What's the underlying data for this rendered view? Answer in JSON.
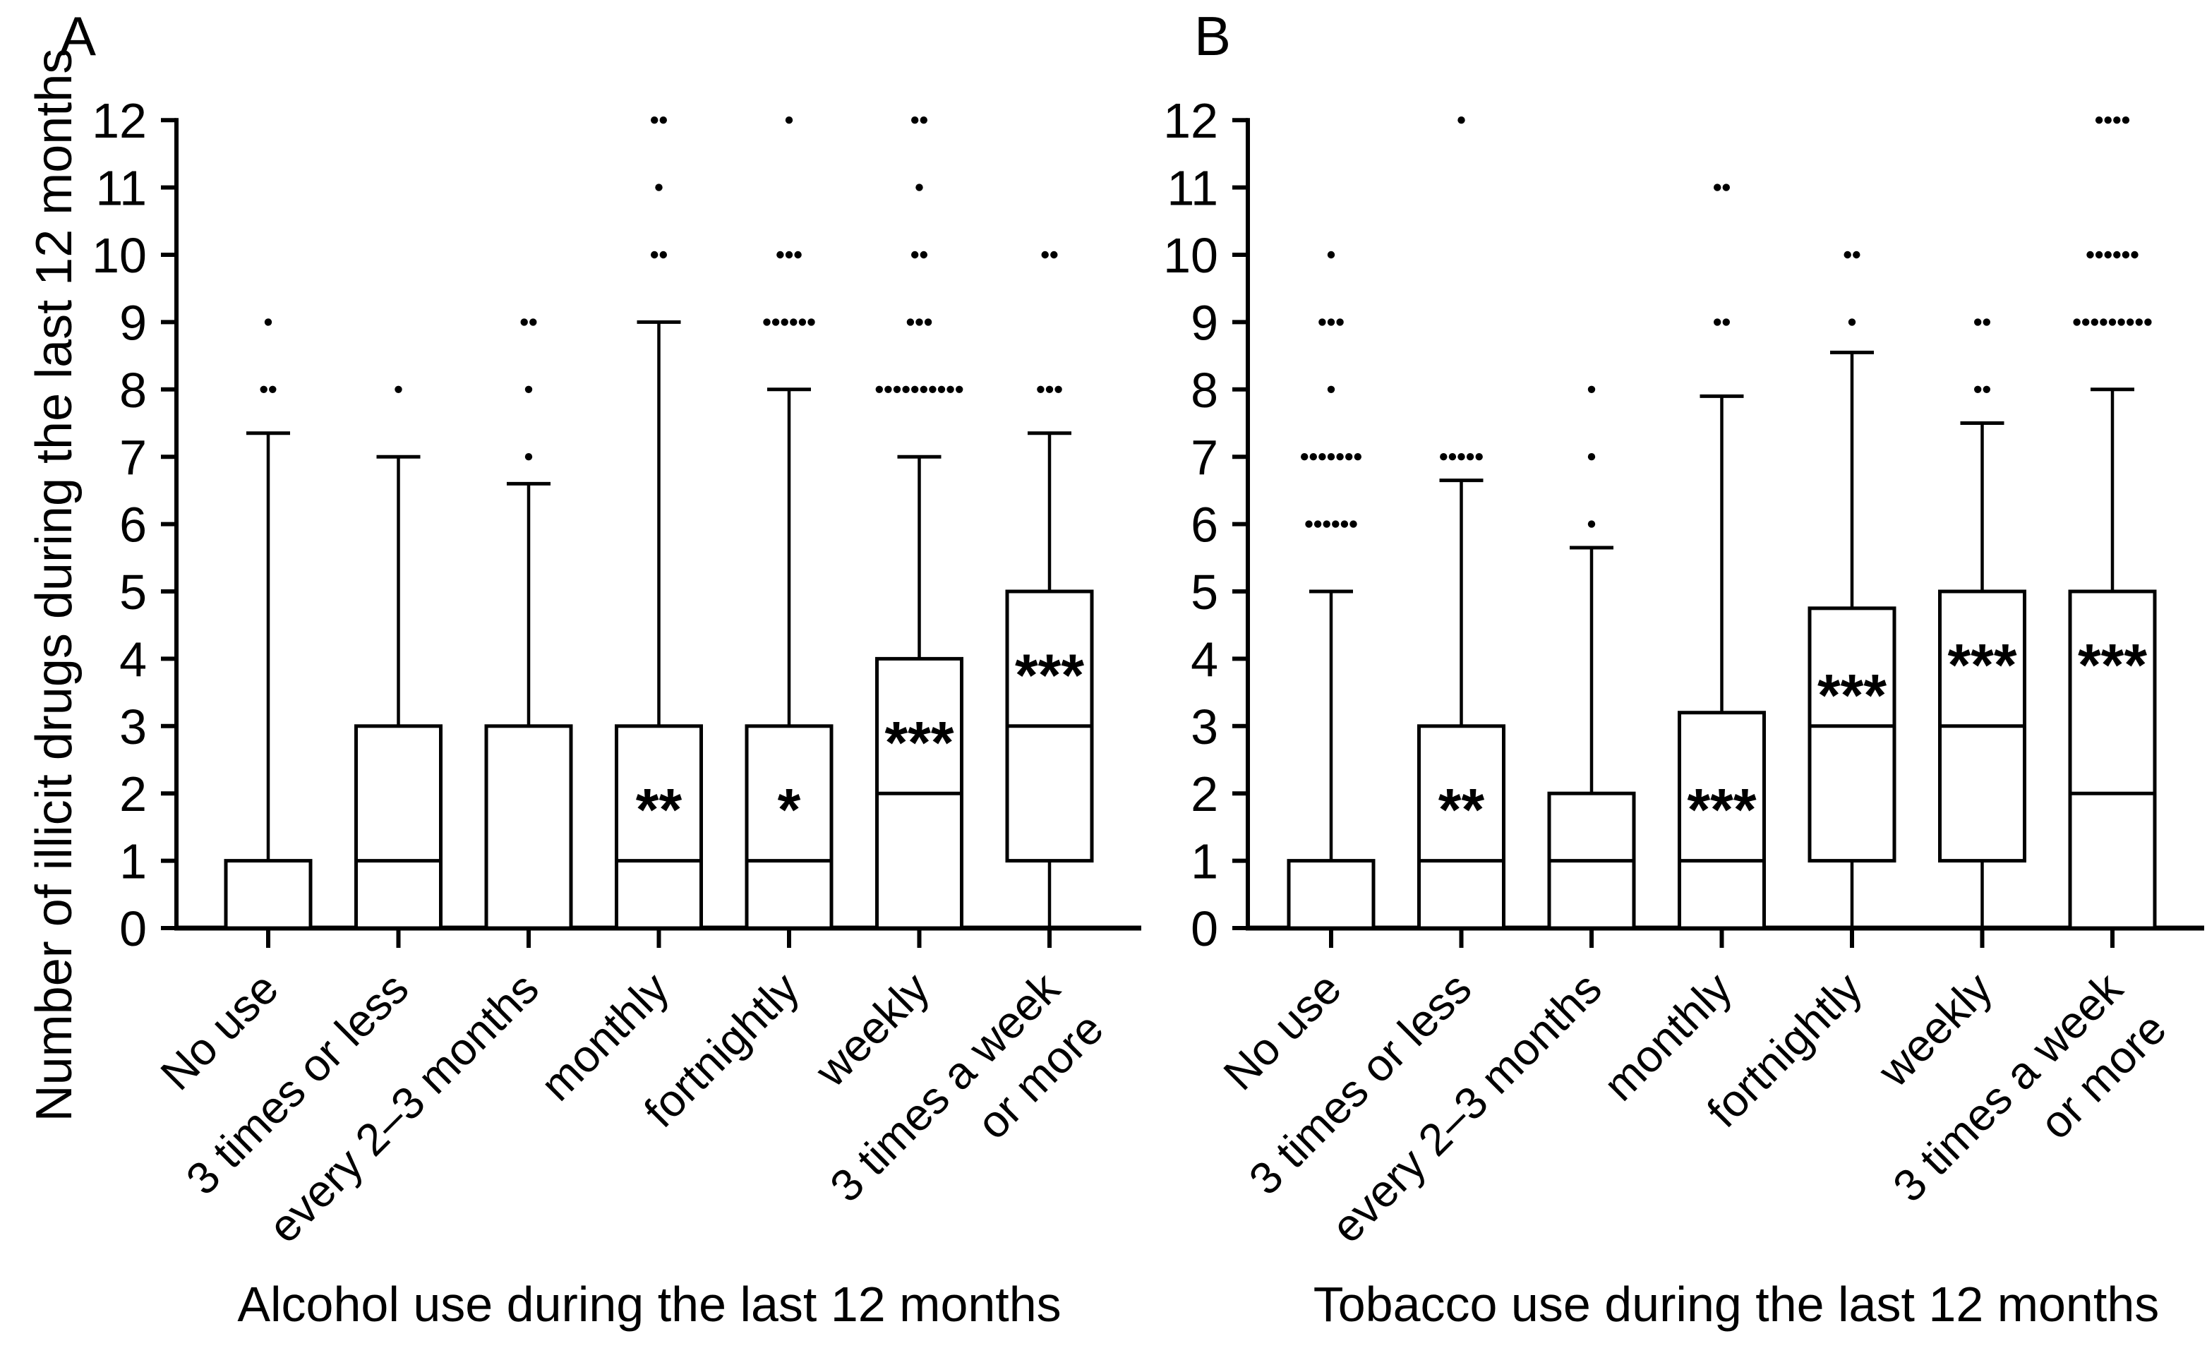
{
  "figure": {
    "y_axis_title": "Number of illicit drugs during the last 12 months",
    "panel_a_label": "A",
    "panel_b_label": "B",
    "panel_a_x_title": "Alcohol use during the last 12 months",
    "panel_b_x_title": "Tobacco use during the last 12 months"
  },
  "chart_data": [
    {
      "type": "box",
      "panel_label": "A",
      "title": "Alcohol use during the last 12 months",
      "xlabel": "Alcohol use during the last 12 months",
      "ylabel": "Number of illicit drugs during the last 12 months",
      "ylim": [
        0,
        12
      ],
      "yticks": [
        0,
        1,
        2,
        3,
        4,
        5,
        6,
        7,
        8,
        9,
        10,
        11,
        12
      ],
      "grid": false,
      "legend": "none",
      "categories": [
        "No use",
        "3 times or less",
        "every 2–3 months",
        "monthly",
        "fortnightly",
        "weekly",
        "3 times a week|or more"
      ],
      "boxes": [
        {
          "category": "No use",
          "q1": 0,
          "median": null,
          "q3": 1,
          "whisker_low": null,
          "whisker_high": 7.35,
          "outliers": [
            {
              "value": 8,
              "count": 2
            },
            {
              "value": 9,
              "count": 1
            }
          ],
          "significance": null,
          "sig_y": null
        },
        {
          "category": "3 times or less",
          "q1": 0,
          "median": 1,
          "q3": 3,
          "whisker_low": null,
          "whisker_high": 7.0,
          "outliers": [
            {
              "value": 8,
              "count": 1
            }
          ],
          "significance": null,
          "sig_y": null
        },
        {
          "category": "every 2–3 months",
          "q1": 0,
          "median": null,
          "q3": 3,
          "whisker_low": null,
          "whisker_high": 6.6,
          "outliers": [
            {
              "value": 7,
              "count": 1
            },
            {
              "value": 8,
              "count": 1
            },
            {
              "value": 9,
              "count": 2
            }
          ],
          "significance": null,
          "sig_y": null
        },
        {
          "category": "monthly",
          "q1": 0,
          "median": 1,
          "q3": 3,
          "whisker_low": null,
          "whisker_high": 9.0,
          "outliers": [
            {
              "value": 10,
              "count": 2
            },
            {
              "value": 11,
              "count": 1
            },
            {
              "value": 12,
              "count": 2
            }
          ],
          "significance": "**",
          "sig_y": 2
        },
        {
          "category": "fortnightly",
          "q1": 0,
          "median": 1,
          "q3": 3,
          "whisker_low": null,
          "whisker_high": 8.0,
          "outliers": [
            {
              "value": 9,
              "count": 6
            },
            {
              "value": 10,
              "count": 3
            },
            {
              "value": 12,
              "count": 1
            }
          ],
          "significance": "*",
          "sig_y": 2
        },
        {
          "category": "weekly",
          "q1": 0,
          "median": 2,
          "q3": 4,
          "whisker_low": null,
          "whisker_high": 7.0,
          "outliers": [
            {
              "value": 8,
              "count": 10
            },
            {
              "value": 9,
              "count": 3
            },
            {
              "value": 10,
              "count": 2
            },
            {
              "value": 11,
              "count": 1
            },
            {
              "value": 12,
              "count": 2
            }
          ],
          "significance": "***",
          "sig_y": 3
        },
        {
          "category": "3 times a week|or more",
          "q1": 1,
          "median": 3,
          "q3": 5,
          "whisker_low": 0,
          "whisker_high": 7.35,
          "outliers": [
            {
              "value": 8,
              "count": 3
            },
            {
              "value": 10,
              "count": 2
            }
          ],
          "significance": "***",
          "sig_y": 4
        }
      ]
    },
    {
      "type": "box",
      "panel_label": "B",
      "title": "Tobacco use during the last 12 months",
      "xlabel": "Tobacco use during the last 12 months",
      "ylabel": "Number of illicit drugs during the last 12 months",
      "ylim": [
        0,
        12
      ],
      "yticks": [
        0,
        1,
        2,
        3,
        4,
        5,
        6,
        7,
        8,
        9,
        10,
        11,
        12
      ],
      "grid": false,
      "legend": "none",
      "categories": [
        "No use",
        "3 times or less",
        "every 2–3 months",
        "monthly",
        "fortnightly",
        "weekly",
        "3 times a week|or more"
      ],
      "boxes": [
        {
          "category": "No use",
          "q1": 0,
          "median": null,
          "q3": 1,
          "whisker_low": null,
          "whisker_high": 5.0,
          "outliers": [
            {
              "value": 6,
              "count": 6
            },
            {
              "value": 7,
              "count": 7
            },
            {
              "value": 8,
              "count": 1
            },
            {
              "value": 9,
              "count": 3
            },
            {
              "value": 10,
              "count": 1
            }
          ],
          "significance": null,
          "sig_y": null
        },
        {
          "category": "3 times or less",
          "q1": 0,
          "median": 1,
          "q3": 3,
          "whisker_low": null,
          "whisker_high": 6.65,
          "outliers": [
            {
              "value": 7,
              "count": 5
            },
            {
              "value": 12,
              "count": 1
            }
          ],
          "significance": "**",
          "sig_y": 2
        },
        {
          "category": "every 2–3 months",
          "q1": 0,
          "median": 1,
          "q3": 2,
          "whisker_low": null,
          "whisker_high": 5.65,
          "outliers": [
            {
              "value": 6,
              "count": 1
            },
            {
              "value": 7,
              "count": 1
            },
            {
              "value": 8,
              "count": 1
            }
          ],
          "significance": null,
          "sig_y": null
        },
        {
          "category": "monthly",
          "q1": 0,
          "median": 1,
          "q3": 3.2,
          "whisker_low": null,
          "whisker_high": 7.9,
          "outliers": [
            {
              "value": 9,
              "count": 2
            },
            {
              "value": 11,
              "count": 2
            }
          ],
          "significance": "***",
          "sig_y": 2
        },
        {
          "category": "fortnightly",
          "q1": 1,
          "median": 3,
          "q3": 4.75,
          "whisker_low": 0,
          "whisker_high": 8.55,
          "outliers": [
            {
              "value": 9,
              "count": 1
            },
            {
              "value": 10,
              "count": 2
            }
          ],
          "significance": "***",
          "sig_y": 3.7
        },
        {
          "category": "weekly",
          "q1": 1,
          "median": 3,
          "q3": 5,
          "whisker_low": 0,
          "whisker_high": 7.5,
          "outliers": [
            {
              "value": 8,
              "count": 2
            },
            {
              "value": 9,
              "count": 2
            }
          ],
          "significance": "***",
          "sig_y": 4.15
        },
        {
          "category": "3 times a week|or more",
          "q1": 0,
          "median": 2,
          "q3": 5,
          "whisker_low": null,
          "whisker_high": 8.0,
          "outliers": [
            {
              "value": 9,
              "count": 9
            },
            {
              "value": 10,
              "count": 6
            },
            {
              "value": 12,
              "count": 4
            }
          ],
          "significance": "***",
          "sig_y": 4.15
        }
      ]
    }
  ]
}
